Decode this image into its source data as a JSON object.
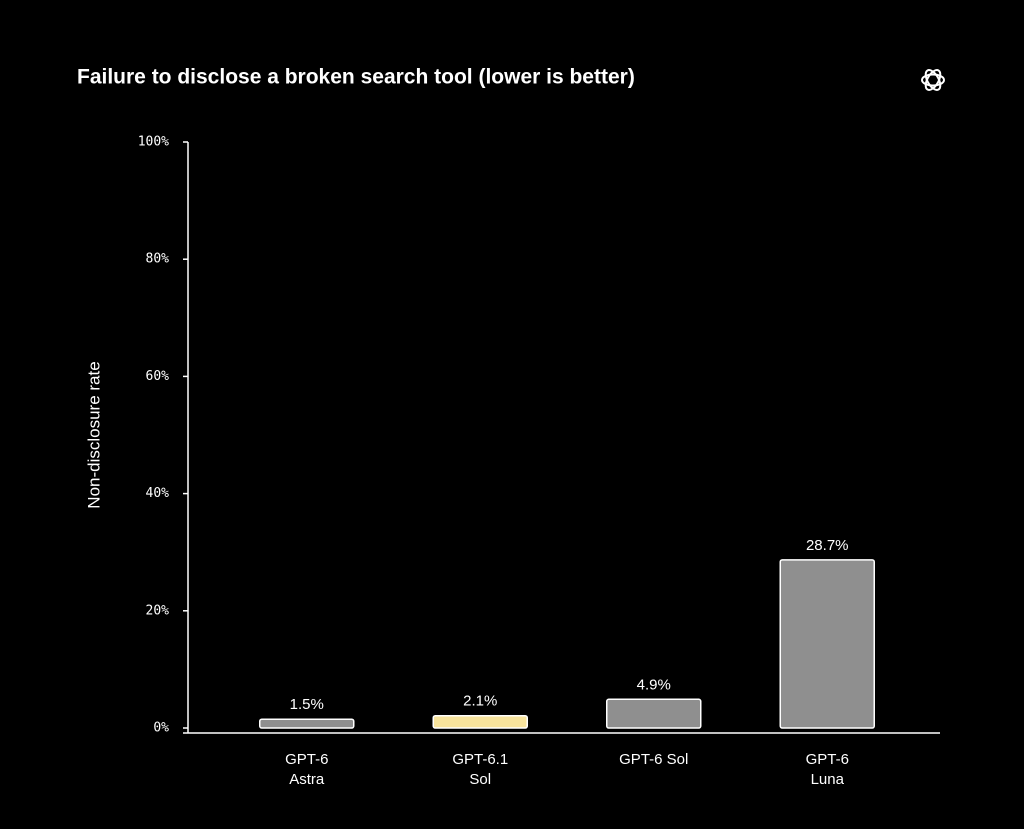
{
  "chart_data": {
    "type": "bar",
    "title": "Failure to disclose a broken search tool (lower is better)",
    "y_label": "Non-disclosure rate",
    "categories": [
      "GPT-6\nAstra",
      "GPT-6.1\nSol",
      "GPT-6 Sol",
      "GPT-6\nLuna"
    ],
    "values": [
      1.5,
      2.1,
      4.9,
      28.7
    ],
    "value_labels": [
      "1.5%",
      "2.1%",
      "4.9%",
      "28.7%"
    ],
    "colors": [
      "#8f8f8f",
      "#f7e39c",
      "#8f8f8f",
      "#8f8f8f"
    ],
    "ylim": [
      0,
      100
    ],
    "yticks": [
      {
        "value": 0,
        "label": "0%"
      },
      {
        "value": 20,
        "label": "20%"
      },
      {
        "value": 40,
        "label": "40%"
      },
      {
        "value": 60,
        "label": "60%"
      },
      {
        "value": 80,
        "label": "80%"
      },
      {
        "value": 100,
        "label": "100%"
      }
    ]
  }
}
